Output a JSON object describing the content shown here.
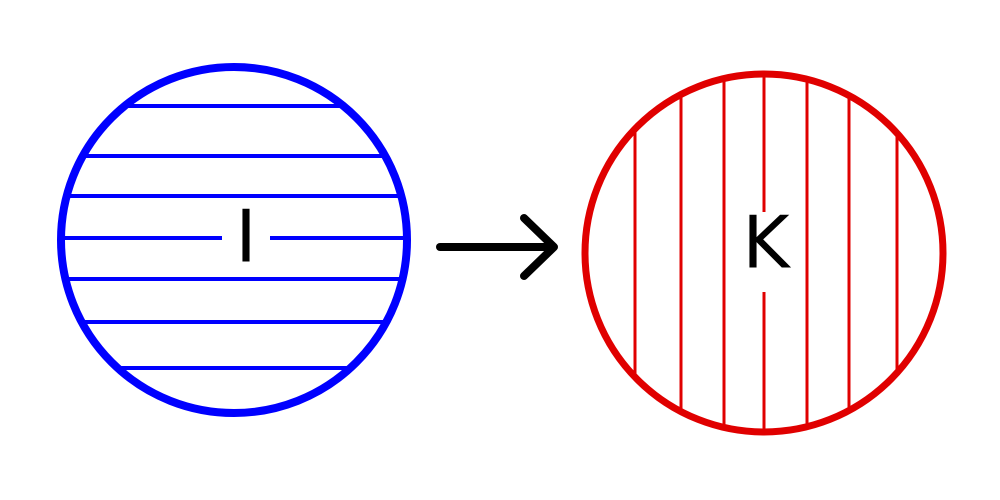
{
  "diagram": {
    "source_set": {
      "label": "I",
      "color": "#0000ff",
      "hatch": "horizontal"
    },
    "target_set": {
      "label": "K",
      "color": "#e00000",
      "hatch": "vertical"
    },
    "arrow": {
      "color": "#000000",
      "icon": "right-arrow-icon"
    }
  }
}
